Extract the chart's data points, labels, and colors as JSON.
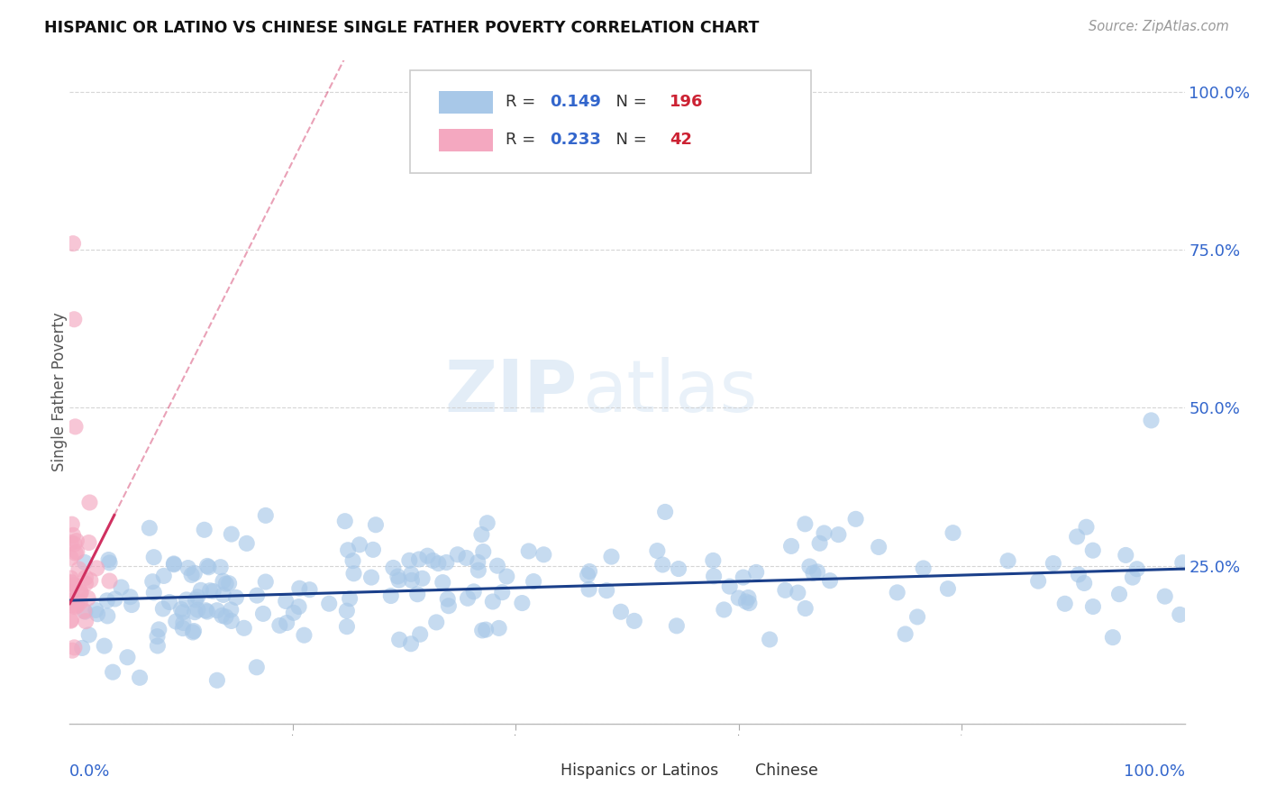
{
  "title": "HISPANIC OR LATINO VS CHINESE SINGLE FATHER POVERTY CORRELATION CHART",
  "source": "Source: ZipAtlas.com",
  "ylabel": "Single Father Poverty",
  "legend_blue_r": "0.149",
  "legend_blue_n": "196",
  "legend_pink_r": "0.233",
  "legend_pink_n": "42",
  "legend_label_blue": "Hispanics or Latinos",
  "legend_label_pink": "Chinese",
  "blue_color": "#a8c8e8",
  "pink_color": "#f4a8c0",
  "blue_line_color": "#1a3f8a",
  "pink_line_color": "#d03060",
  "watermark_zip": "ZIP",
  "watermark_atlas": "atlas",
  "blue_line_slope": 0.05,
  "blue_line_intercept": 0.195,
  "pink_line_slope": 3.5,
  "pink_line_intercept": 0.19
}
